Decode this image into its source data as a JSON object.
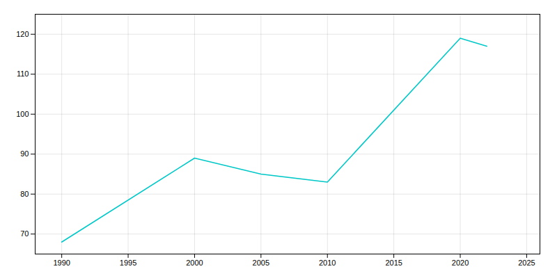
{
  "chart_data": {
    "type": "line",
    "x": [
      1990,
      2000,
      2005,
      2010,
      2020,
      2021,
      2022
    ],
    "values": [
      68,
      89,
      85,
      83,
      119,
      118,
      117
    ],
    "color": "#00c8c8",
    "xlim": [
      1988,
      2026
    ],
    "ylim": [
      65,
      125
    ],
    "xticks": [
      1990,
      1995,
      2000,
      2005,
      2010,
      2015,
      2020,
      2025
    ],
    "yticks": [
      70,
      80,
      90,
      100,
      110,
      120
    ],
    "grid": true
  }
}
